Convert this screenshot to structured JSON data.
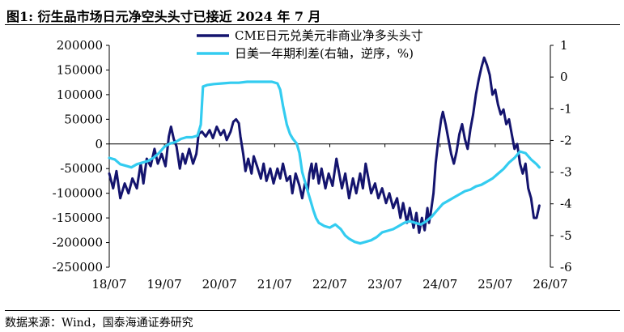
{
  "title": "图1:  衍生品市场日元净空头头寸已接近 2024 年 7 月",
  "source": "数据来源：Wind，国泰海通证券研究",
  "chart_data": {
    "type": "line",
    "x_tick_labels": [
      "18/07",
      "19/07",
      "20/07",
      "21/07",
      "22/07",
      "23/07",
      "24/07",
      "25/07",
      "26/07"
    ],
    "left_axis": {
      "min": -250000,
      "max": 200000,
      "ticks": [
        200000,
        150000,
        100000,
        50000,
        0,
        -50000,
        -100000,
        -150000,
        -200000,
        -250000
      ]
    },
    "right_axis": {
      "min": -6,
      "max": 1,
      "inverted": true,
      "ticks": [
        1,
        0,
        -1,
        -2,
        -3,
        -4,
        -5,
        -6
      ]
    },
    "legend_position": "top-center",
    "series": [
      {
        "name": "CME日元兑美元非商业净多头头寸",
        "axis": "left",
        "color": "#14146E",
        "points": [
          [
            2018.5,
            -60000
          ],
          [
            2018.57,
            -90000
          ],
          [
            2018.63,
            -55000
          ],
          [
            2018.7,
            -110000
          ],
          [
            2018.78,
            -80000
          ],
          [
            2018.85,
            -100000
          ],
          [
            2018.92,
            -70000
          ],
          [
            2019.0,
            -90000
          ],
          [
            2019.07,
            -40000
          ],
          [
            2019.12,
            -80000
          ],
          [
            2019.18,
            -30000
          ],
          [
            2019.25,
            -45000
          ],
          [
            2019.32,
            -10000
          ],
          [
            2019.38,
            -40000
          ],
          [
            2019.45,
            -20000
          ],
          [
            2019.52,
            -45000
          ],
          [
            2019.58,
            15000
          ],
          [
            2019.62,
            35000
          ],
          [
            2019.67,
            10000
          ],
          [
            2019.72,
            -5000
          ],
          [
            2019.78,
            -50000
          ],
          [
            2019.83,
            -20000
          ],
          [
            2019.88,
            -40000
          ],
          [
            2019.95,
            -10000
          ],
          [
            2020.02,
            -40000
          ],
          [
            2020.08,
            -20000
          ],
          [
            2020.12,
            20000
          ],
          [
            2020.18,
            25000
          ],
          [
            2020.25,
            15000
          ],
          [
            2020.32,
            28000
          ],
          [
            2020.38,
            12000
          ],
          [
            2020.45,
            35000
          ],
          [
            2020.52,
            18000
          ],
          [
            2020.58,
            28000
          ],
          [
            2020.63,
            8000
          ],
          [
            2020.7,
            25000
          ],
          [
            2020.75,
            45000
          ],
          [
            2020.8,
            50000
          ],
          [
            2020.85,
            42000
          ],
          [
            2020.88,
            15000
          ],
          [
            2020.93,
            -20000
          ],
          [
            2020.97,
            -55000
          ],
          [
            2021.02,
            -30000
          ],
          [
            2021.08,
            -60000
          ],
          [
            2021.12,
            -25000
          ],
          [
            2021.18,
            -45000
          ],
          [
            2021.25,
            -70000
          ],
          [
            2021.3,
            -40000
          ],
          [
            2021.35,
            -75000
          ],
          [
            2021.42,
            -50000
          ],
          [
            2021.48,
            -80000
          ],
          [
            2021.55,
            -50000
          ],
          [
            2021.6,
            -70000
          ],
          [
            2021.65,
            -40000
          ],
          [
            2021.72,
            -75000
          ],
          [
            2021.78,
            -65000
          ],
          [
            2021.82,
            -100000
          ],
          [
            2021.88,
            -60000
          ],
          [
            2021.95,
            -85000
          ],
          [
            2022.0,
            -110000
          ],
          [
            2022.05,
            -80000
          ],
          [
            2022.1,
            -95000
          ],
          [
            2022.13,
            -60000
          ],
          [
            2022.17,
            -40000
          ],
          [
            2022.2,
            -70000
          ],
          [
            2022.25,
            -40000
          ],
          [
            2022.3,
            -80000
          ],
          [
            2022.35,
            -50000
          ],
          [
            2022.42,
            -90000
          ],
          [
            2022.48,
            -60000
          ],
          [
            2022.55,
            -85000
          ],
          [
            2022.62,
            -30000
          ],
          [
            2022.67,
            -60000
          ],
          [
            2022.72,
            -90000
          ],
          [
            2022.78,
            -60000
          ],
          [
            2022.85,
            -110000
          ],
          [
            2022.92,
            -70000
          ],
          [
            2022.98,
            -100000
          ],
          [
            2023.05,
            -60000
          ],
          [
            2023.1,
            -90000
          ],
          [
            2023.15,
            -40000
          ],
          [
            2023.2,
            -70000
          ],
          [
            2023.25,
            -100000
          ],
          [
            2023.32,
            -80000
          ],
          [
            2023.38,
            -110000
          ],
          [
            2023.45,
            -90000
          ],
          [
            2023.52,
            -120000
          ],
          [
            2023.58,
            -100000
          ],
          [
            2023.65,
            -130000
          ],
          [
            2023.72,
            -110000
          ],
          [
            2023.78,
            -150000
          ],
          [
            2023.83,
            -120000
          ],
          [
            2023.9,
            -160000
          ],
          [
            2023.95,
            -130000
          ],
          [
            2024.02,
            -170000
          ],
          [
            2024.07,
            -140000
          ],
          [
            2024.12,
            -180000
          ],
          [
            2024.17,
            -150000
          ],
          [
            2024.22,
            -175000
          ],
          [
            2024.27,
            -130000
          ],
          [
            2024.3,
            -160000
          ],
          [
            2024.33,
            -140000
          ],
          [
            2024.38,
            -100000
          ],
          [
            2024.42,
            -40000
          ],
          [
            2024.47,
            10000
          ],
          [
            2024.52,
            50000
          ],
          [
            2024.55,
            65000
          ],
          [
            2024.6,
            40000
          ],
          [
            2024.65,
            10000
          ],
          [
            2024.7,
            -20000
          ],
          [
            2024.75,
            -40000
          ],
          [
            2024.8,
            -15000
          ],
          [
            2024.85,
            20000
          ],
          [
            2024.9,
            40000
          ],
          [
            2024.95,
            10000
          ],
          [
            2025.0,
            -10000
          ],
          [
            2025.05,
            30000
          ],
          [
            2025.1,
            60000
          ],
          [
            2025.15,
            100000
          ],
          [
            2025.2,
            130000
          ],
          [
            2025.25,
            155000
          ],
          [
            2025.3,
            175000
          ],
          [
            2025.35,
            160000
          ],
          [
            2025.4,
            140000
          ],
          [
            2025.45,
            100000
          ],
          [
            2025.5,
            110000
          ],
          [
            2025.55,
            80000
          ],
          [
            2025.6,
            60000
          ],
          [
            2025.65,
            70000
          ],
          [
            2025.7,
            40000
          ],
          [
            2025.75,
            50000
          ],
          [
            2025.8,
            20000
          ],
          [
            2025.85,
            -10000
          ],
          [
            2025.9,
            0
          ],
          [
            2025.95,
            -40000
          ],
          [
            2026.0,
            -60000
          ],
          [
            2026.05,
            -40000
          ],
          [
            2026.1,
            -90000
          ],
          [
            2026.15,
            -110000
          ],
          [
            2026.2,
            -150000
          ],
          [
            2026.25,
            -150000
          ],
          [
            2026.3,
            -125000
          ]
        ]
      },
      {
        "name": "日美一年期利差(右轴，逆序，%)",
        "axis": "right",
        "color": "#33CCF0",
        "points": [
          [
            2018.5,
            -2.55
          ],
          [
            2018.6,
            -2.6
          ],
          [
            2018.7,
            -2.75
          ],
          [
            2018.8,
            -2.8
          ],
          [
            2018.9,
            -2.85
          ],
          [
            2019.0,
            -2.75
          ],
          [
            2019.1,
            -2.7
          ],
          [
            2019.2,
            -2.65
          ],
          [
            2019.3,
            -2.55
          ],
          [
            2019.4,
            -2.4
          ],
          [
            2019.5,
            -2.2
          ],
          [
            2019.6,
            -2.1
          ],
          [
            2019.7,
            -2.05
          ],
          [
            2019.8,
            -1.95
          ],
          [
            2019.9,
            -1.9
          ],
          [
            2020.0,
            -1.9
          ],
          [
            2020.1,
            -1.85
          ],
          [
            2020.16,
            -1.5
          ],
          [
            2020.2,
            -0.3
          ],
          [
            2020.28,
            -0.25
          ],
          [
            2020.4,
            -0.22
          ],
          [
            2020.55,
            -0.2
          ],
          [
            2020.7,
            -0.18
          ],
          [
            2020.85,
            -0.18
          ],
          [
            2021.0,
            -0.15
          ],
          [
            2021.15,
            -0.15
          ],
          [
            2021.3,
            -0.15
          ],
          [
            2021.45,
            -0.15
          ],
          [
            2021.55,
            -0.2
          ],
          [
            2021.6,
            -0.4
          ],
          [
            2021.65,
            -0.9
          ],
          [
            2021.72,
            -1.5
          ],
          [
            2021.78,
            -1.8
          ],
          [
            2021.83,
            -1.95
          ],
          [
            2021.9,
            -2.1
          ],
          [
            2021.95,
            -2.4
          ],
          [
            2022.0,
            -3.0
          ],
          [
            2022.05,
            -3.3
          ],
          [
            2022.1,
            -3.6
          ],
          [
            2022.15,
            -3.9
          ],
          [
            2022.2,
            -4.2
          ],
          [
            2022.25,
            -4.45
          ],
          [
            2022.3,
            -4.6
          ],
          [
            2022.4,
            -4.7
          ],
          [
            2022.5,
            -4.75
          ],
          [
            2022.6,
            -4.65
          ],
          [
            2022.7,
            -4.8
          ],
          [
            2022.78,
            -5.0
          ],
          [
            2022.85,
            -5.1
          ],
          [
            2022.95,
            -5.2
          ],
          [
            2023.05,
            -5.25
          ],
          [
            2023.15,
            -5.2
          ],
          [
            2023.25,
            -5.15
          ],
          [
            2023.35,
            -5.05
          ],
          [
            2023.45,
            -4.9
          ],
          [
            2023.55,
            -4.85
          ],
          [
            2023.65,
            -4.8
          ],
          [
            2023.75,
            -4.7
          ],
          [
            2023.85,
            -4.6
          ],
          [
            2023.95,
            -4.55
          ],
          [
            2024.05,
            -4.6
          ],
          [
            2024.15,
            -4.65
          ],
          [
            2024.25,
            -4.55
          ],
          [
            2024.35,
            -4.4
          ],
          [
            2024.45,
            -4.2
          ],
          [
            2024.55,
            -4.0
          ],
          [
            2024.65,
            -3.9
          ],
          [
            2024.75,
            -3.8
          ],
          [
            2024.85,
            -3.7
          ],
          [
            2024.95,
            -3.6
          ],
          [
            2025.05,
            -3.55
          ],
          [
            2025.15,
            -3.45
          ],
          [
            2025.25,
            -3.4
          ],
          [
            2025.35,
            -3.3
          ],
          [
            2025.45,
            -3.2
          ],
          [
            2025.55,
            -3.05
          ],
          [
            2025.65,
            -2.9
          ],
          [
            2025.75,
            -2.7
          ],
          [
            2025.85,
            -2.55
          ],
          [
            2025.95,
            -2.35
          ],
          [
            2026.05,
            -2.4
          ],
          [
            2026.15,
            -2.6
          ],
          [
            2026.25,
            -2.75
          ],
          [
            2026.3,
            -2.85
          ]
        ]
      }
    ]
  }
}
